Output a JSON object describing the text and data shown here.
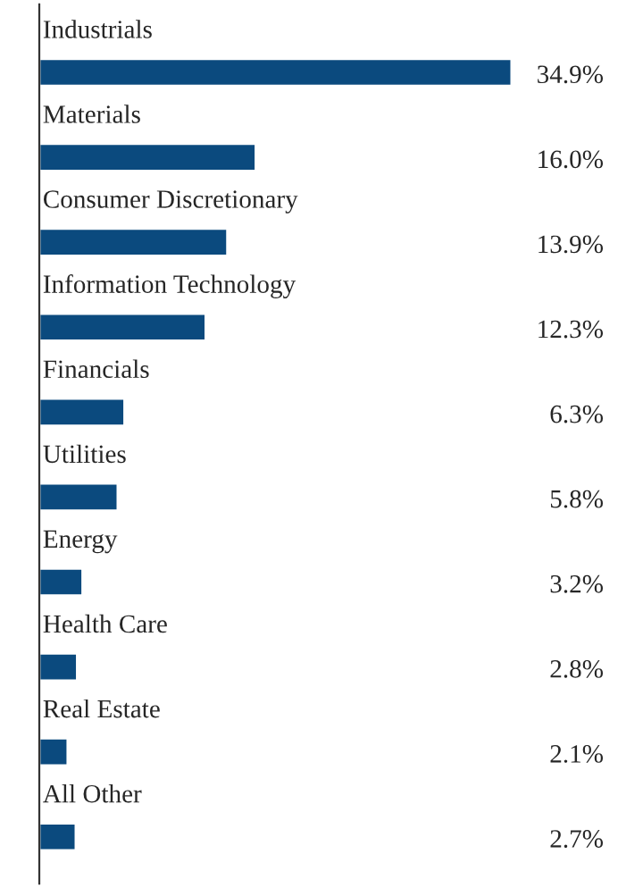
{
  "chart_data": {
    "type": "bar",
    "orientation": "horizontal",
    "categories": [
      "Industrials",
      "Materials",
      "Consumer Discretionary",
      "Information Technology",
      "Financials",
      "Utilities",
      "Energy",
      "Health Care",
      "Real Estate",
      "All Other"
    ],
    "values": [
      34.9,
      16.0,
      13.9,
      12.3,
      6.3,
      5.8,
      3.2,
      2.8,
      2.1,
      2.7
    ],
    "value_labels": [
      "34.9%",
      "16.0%",
      "13.9%",
      "12.3%",
      "6.3%",
      "5.8%",
      "3.2%",
      "2.8%",
      "2.1%",
      "2.7%"
    ],
    "color": "#0b4a7e",
    "tick_labels": false
  }
}
